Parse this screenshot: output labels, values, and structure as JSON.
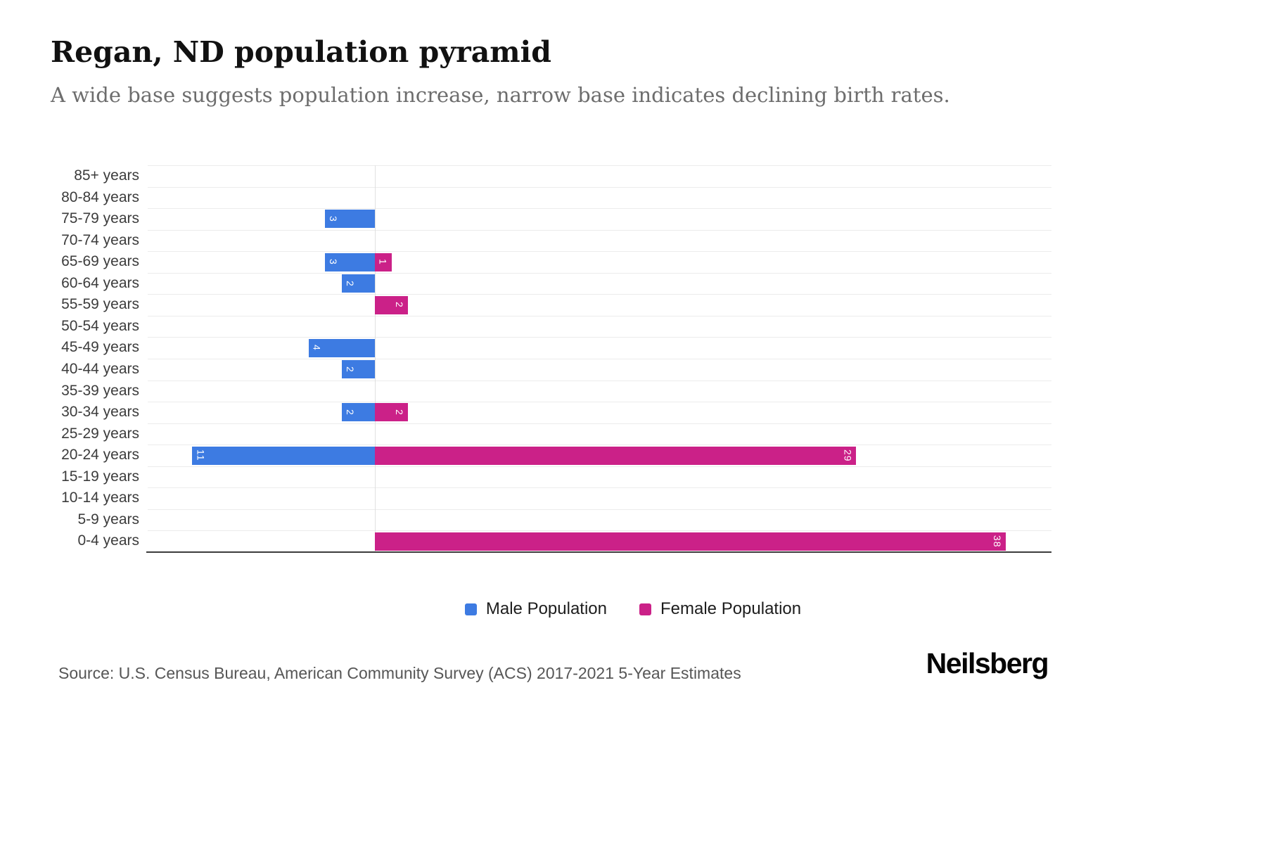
{
  "header": {
    "title": "Regan, ND population pyramid",
    "subtitle": "A wide base suggests population increase, narrow base indicates declining birth rates."
  },
  "chart_data": {
    "type": "bar",
    "variant": "population-pyramid",
    "title": "Regan, ND population pyramid",
    "categories": [
      "85+ years",
      "80-84 years",
      "75-79 years",
      "70-74 years",
      "65-69 years",
      "60-64 years",
      "55-59 years",
      "50-54 years",
      "45-49 years",
      "40-44 years",
      "35-39 years",
      "30-34 years",
      "25-29 years",
      "20-24 years",
      "15-19 years",
      "10-14 years",
      "5-9 years",
      "0-4 years"
    ],
    "series": [
      {
        "name": "Male Population",
        "color": "#3d7be2",
        "values": [
          0,
          0,
          3,
          0,
          3,
          2,
          0,
          0,
          4,
          2,
          0,
          2,
          0,
          11,
          0,
          0,
          0,
          0
        ]
      },
      {
        "name": "Female Population",
        "color": "#cb2188",
        "values": [
          0,
          0,
          0,
          0,
          1,
          0,
          2,
          0,
          0,
          0,
          0,
          2,
          0,
          29,
          0,
          0,
          0,
          38
        ]
      }
    ],
    "value_labels_shown": true,
    "grid": "horizontal",
    "legend_position": "bottom"
  },
  "footer": {
    "source": "Source: U.S. Census Bureau, American Community Survey (ACS) 2017-2021 5-Year Estimates",
    "brand": "Neilsberg"
  }
}
